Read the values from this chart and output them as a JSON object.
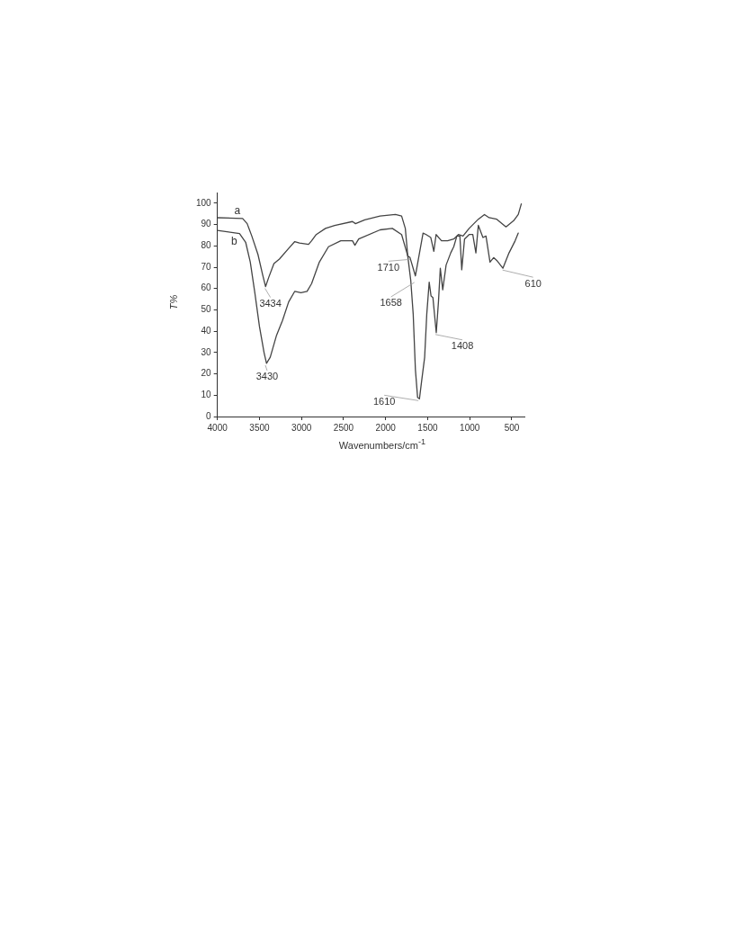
{
  "chart_data": {
    "type": "line",
    "xlabel": "Wavenumbers/cm$^{-1}$",
    "ylabel": "T%",
    "xlim": [
      4000,
      350
    ],
    "xticks": [
      4000,
      3500,
      3000,
      2500,
      2000,
      1500,
      1000,
      500
    ],
    "ylim": [
      0,
      105
    ],
    "yticks": [
      0,
      10,
      20,
      30,
      40,
      50,
      60,
      70,
      80,
      90,
      100
    ],
    "grid": false,
    "legend": false,
    "marker": "none",
    "line_style": "solid",
    "series": [
      {
        "name": "a",
        "color": "#444444",
        "x": [
          4000,
          3700,
          3646,
          3591,
          3518,
          3463,
          3427,
          3390,
          3328,
          3263,
          3153,
          3080,
          3025,
          2970,
          2916,
          2880,
          2825,
          2715,
          2606,
          2394,
          2358,
          2248,
          2066,
          1883,
          1810,
          1766,
          1737,
          1710,
          1646,
          1555,
          1518,
          1463,
          1427,
          1400,
          1336,
          1263,
          1190,
          1135,
          1080,
          1007,
          898,
          825,
          770,
          679,
          569,
          478,
          423,
          387
        ],
        "values": [
          93.2,
          92.8,
          90.4,
          84.6,
          76,
          66.6,
          60.9,
          65.2,
          71.7,
          73.8,
          78.8,
          82,
          81.3,
          81,
          80.7,
          82.4,
          85.3,
          88.2,
          89.6,
          91.4,
          90.4,
          92.2,
          94,
          94.7,
          94,
          88.2,
          75.3,
          74.5,
          65.9,
          86,
          85.3,
          83.9,
          77.4,
          85.3,
          82.4,
          82.4,
          83.2,
          85.3,
          84.6,
          88.2,
          92.5,
          94.7,
          93.2,
          92.5,
          88.9,
          91.8,
          94.7,
          99.7
        ]
      },
      {
        "name": "b",
        "color": "#444444",
        "x": [
          4000,
          3737,
          3664,
          3609,
          3555,
          3500,
          3445,
          3416,
          3372,
          3299,
          3226,
          3153,
          3080,
          3007,
          2934,
          2880,
          2788,
          2679,
          2533,
          2394,
          2365,
          2320,
          2066,
          1920,
          1810,
          1737,
          1701,
          1672,
          1646,
          1620,
          1598,
          1573,
          1536,
          1511,
          1482,
          1460,
          1438,
          1398,
          1372,
          1350,
          1321,
          1281,
          1226,
          1190,
          1153,
          1117,
          1095,
          1062,
          1007,
          964,
          927,
          898,
          843,
          807,
          759,
          716,
          679,
          606,
          533,
          460,
          423
        ],
        "values": [
          87.2,
          85.8,
          81.7,
          72.4,
          58,
          42.2,
          29.9,
          24.9,
          27.8,
          37.8,
          45,
          53.7,
          58.7,
          58,
          58.7,
          62.3,
          72.4,
          79.6,
          82.4,
          82.4,
          80.3,
          83.2,
          87.5,
          88.2,
          85.3,
          75.3,
          63.7,
          47.9,
          22,
          9,
          8.3,
          16.3,
          27.8,
          47.9,
          63,
          56.5,
          55.8,
          39.3,
          53.7,
          69.5,
          59.4,
          71,
          76.7,
          79.6,
          84.6,
          84.6,
          68.8,
          83.2,
          85.3,
          85.3,
          76.7,
          89.6,
          83.9,
          84.6,
          72.4,
          74.5,
          73.2,
          69.5,
          76.7,
          82.4,
          86
        ]
      }
    ],
    "annotations": [
      {
        "text": "3434",
        "x": 3434,
        "y": 60.9
      },
      {
        "text": "3430",
        "x": 3430,
        "y": 24.9
      },
      {
        "text": "1710",
        "x": 1710,
        "y": 74.5
      },
      {
        "text": "1658",
        "x": 1658,
        "y": 63.7
      },
      {
        "text": "1610",
        "x": 1610,
        "y": 8.3
      },
      {
        "text": "1408",
        "x": 1408,
        "y": 39.3
      },
      {
        "text": "610",
        "x": 610,
        "y": 69.5
      }
    ]
  }
}
